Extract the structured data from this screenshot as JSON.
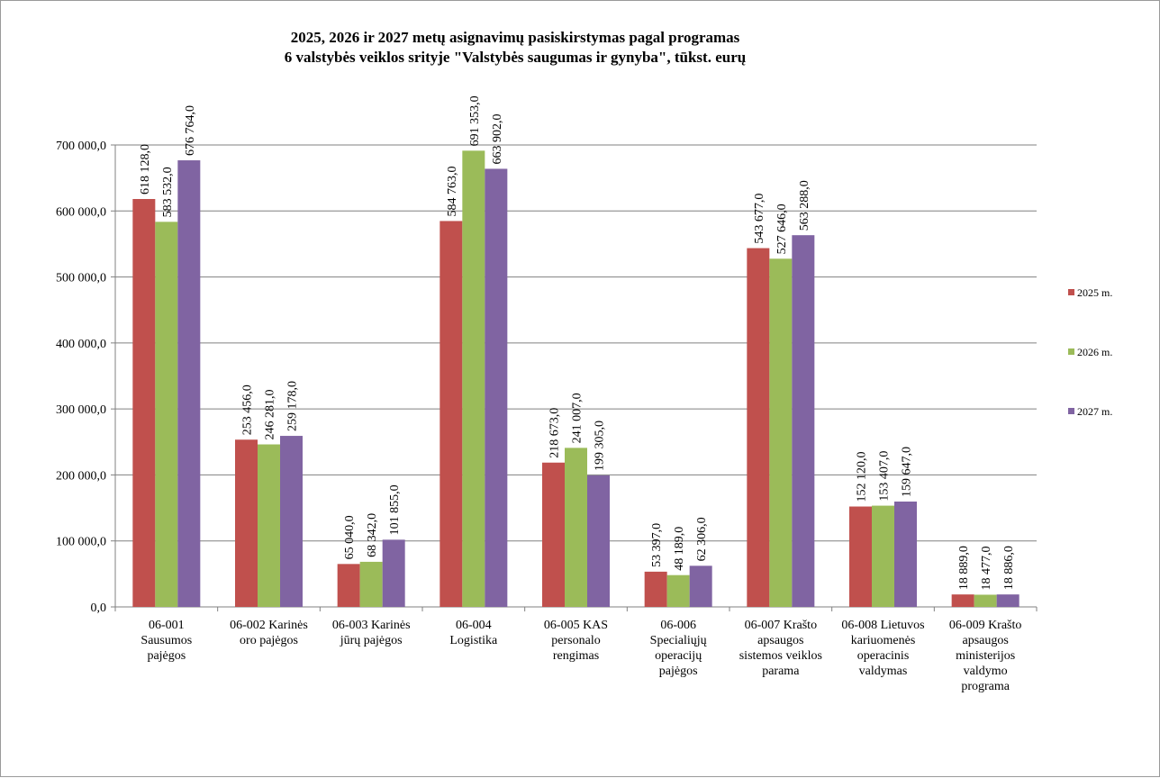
{
  "chart_data": {
    "type": "bar",
    "title": "2025, 2026 ir 2027 metų asignavimų pasiskirstymas pagal programas",
    "subtitle": "6 valstybės veiklos srityje \"Valstybės saugumas ir gynyba\", tūkst. eurų",
    "categories": [
      [
        "06-001",
        "Sausumos",
        "pajėgos"
      ],
      [
        "06-002 Karinės",
        "oro pajėgos"
      ],
      [
        "06-003 Karinės",
        "jūrų pajėgos"
      ],
      [
        "06-004",
        "Logistika"
      ],
      [
        "06-005 KAS",
        "personalo",
        "rengimas"
      ],
      [
        "06-006",
        "Specialiųjų",
        "operacijų",
        "pajėgos"
      ],
      [
        "06-007 Krašto",
        "apsaugos",
        "sistemos veiklos",
        "parama"
      ],
      [
        "06-008 Lietuvos",
        "kariuomenės",
        "operacinis",
        "valdymas"
      ],
      [
        "06-009 Krašto",
        "apsaugos",
        "ministerijos",
        "valdymo",
        "programa"
      ]
    ],
    "series": [
      {
        "name": "2025 m.",
        "color": "#c0504d",
        "values": [
          618128.0,
          253456.0,
          65040.0,
          584763.0,
          218673.0,
          53397.0,
          543677.0,
          152120.0,
          18889.0
        ],
        "labels": [
          "618 128,0",
          "253 456,0",
          "65 040,0",
          "584 763,0",
          "218 673,0",
          "53 397,0",
          "543 677,0",
          "152 120,0",
          "18 889,0"
        ]
      },
      {
        "name": "2026 m.",
        "color": "#9bbb59",
        "values": [
          583532.0,
          246281.0,
          68342.0,
          691353.0,
          241007.0,
          48189.0,
          527646.0,
          153407.0,
          18477.0
        ],
        "labels": [
          "583 532,0",
          "246 281,0",
          "68 342,0",
          "691 353,0",
          "241 007,0",
          "48 189,0",
          "527 646,0",
          "153 407,0",
          "18 477,0"
        ]
      },
      {
        "name": "2027 m.",
        "color": "#8064a2",
        "values": [
          676764.0,
          259178.0,
          101855.0,
          663902.0,
          199305.0,
          62306.0,
          563288.0,
          159647.0,
          18886.0
        ],
        "labels": [
          "676 764,0",
          "259 178,0",
          "101 855,0",
          "663 902,0",
          "199 305,0",
          "62 306,0",
          "563 288,0",
          "159 647,0",
          "18 886,0"
        ]
      }
    ],
    "ylim": [
      0,
      700000
    ],
    "yticks": [
      0,
      100000,
      200000,
      300000,
      400000,
      500000,
      600000,
      700000
    ],
    "ytick_labels": [
      "0,0",
      "100 000,0",
      "200 000,0",
      "300 000,0",
      "400 000,0",
      "500 000,0",
      "600 000,0",
      "700 000,0"
    ],
    "grid": true,
    "legend_position": "right"
  }
}
